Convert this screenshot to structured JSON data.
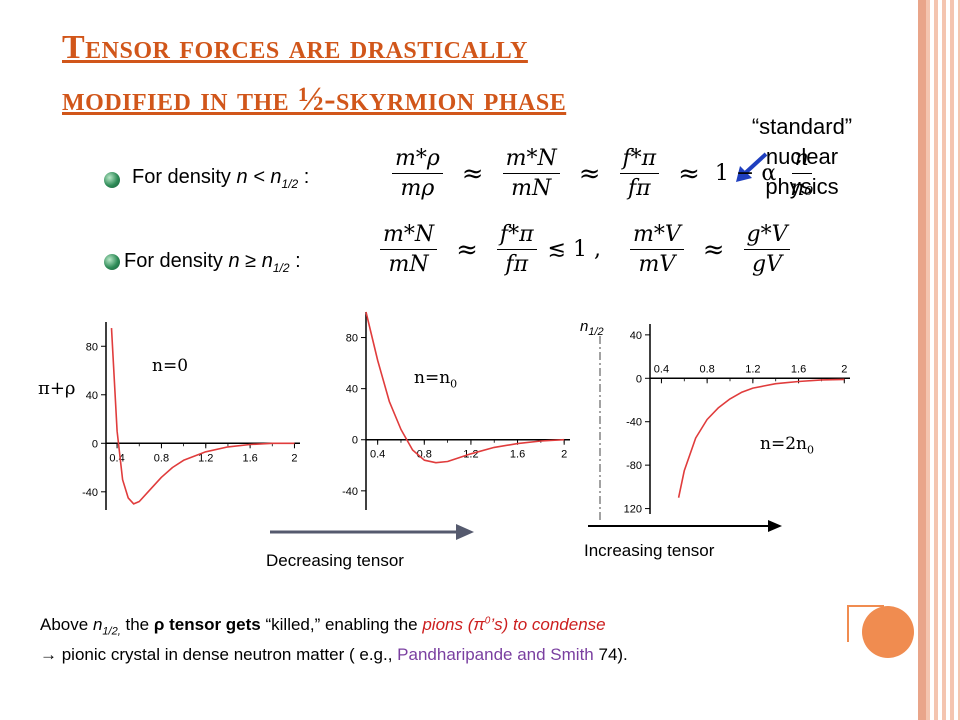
{
  "slide": {
    "title_line1": "Tensor forces are drastically",
    "title_line2": "modified in the ½-skyrmion phase"
  },
  "bullets": {
    "first_prefix": "For density",
    "first_cond": "n < n",
    "first_sub": "1/2",
    "first_colon": ":",
    "second_prefix": "For density",
    "second_cond": "n ≥ n",
    "second_sub": "1/2",
    "second_colon": ":"
  },
  "eq1": {
    "t1_num": "m*ρ",
    "t1_den": "mρ",
    "t2_num": "m*N",
    "t2_den": "mN",
    "t3_num": "f*π",
    "t3_den": "fπ",
    "tail": "1 − α",
    "t4_num": "n",
    "t4_den": "n₀",
    "approx": "≈"
  },
  "eq2": {
    "t1_num": "m*N",
    "t1_den": "mN",
    "t2_num": "f*π",
    "t2_den": "fπ",
    "lesssim": "≲ 1 ,",
    "t3_num": "m*V",
    "t3_den": "mV",
    "t4_num": "g*V",
    "t4_den": "gV",
    "approx": "≈"
  },
  "annotation": {
    "line1": "“standard”",
    "line2": "nuclear",
    "line3": "physics",
    "arrow_color": "#1f3fbf"
  },
  "plots": {
    "channel_label": "π+ρ",
    "n_half_label": "n",
    "n_half_sub": "1/2",
    "decreasing_label": "Decreasing tensor",
    "increasing_label": "Increasing tensor"
  },
  "chart_data": [
    {
      "type": "line",
      "annotation": "n=0",
      "x": [
        0.35,
        0.4,
        0.45,
        0.5,
        0.55,
        0.6,
        0.7,
        0.8,
        0.9,
        1.0,
        1.2,
        1.4,
        1.6,
        1.8,
        2.0
      ],
      "y": [
        95,
        10,
        -30,
        -45,
        -50,
        -48,
        -38,
        -28,
        -20,
        -14,
        -7,
        -3,
        -1,
        0,
        0
      ],
      "xticks": [
        "0.4",
        "0.8",
        "1.2",
        "1.6",
        "2"
      ],
      "yticks": [
        "80",
        "40",
        "0",
        "-40"
      ],
      "xlim": [
        0.3,
        2.05
      ],
      "ylim": [
        -55,
        100
      ],
      "color": "#e03c3c"
    },
    {
      "type": "line",
      "annotation": "n=n",
      "annotation_sub": "0",
      "x": [
        0.3,
        0.4,
        0.5,
        0.6,
        0.7,
        0.8,
        0.9,
        1.0,
        1.1,
        1.2,
        1.4,
        1.6,
        1.8,
        2.0
      ],
      "y": [
        100,
        62,
        30,
        8,
        -8,
        -16,
        -18,
        -17,
        -14,
        -11,
        -6,
        -3,
        -1,
        0
      ],
      "xticks": [
        "0.4",
        "0.8",
        "1.2",
        "1.6",
        "2"
      ],
      "yticks": [
        "80",
        "40",
        "0",
        "-40"
      ],
      "xlim": [
        0.3,
        2.05
      ],
      "ylim": [
        -55,
        100
      ],
      "color": "#e03c3c"
    },
    {
      "type": "line",
      "annotation": "n=2n",
      "annotation_sub": "0",
      "x": [
        0.55,
        0.6,
        0.7,
        0.8,
        0.9,
        1.0,
        1.1,
        1.2,
        1.3,
        1.4,
        1.6,
        1.8,
        2.0
      ],
      "y": [
        -110,
        -85,
        -55,
        -38,
        -27,
        -19,
        -13,
        -9,
        -7,
        -5,
        -3,
        -1.5,
        -1
      ],
      "xticks": [
        "0.4",
        "0.8",
        "1.2",
        "1.6",
        "2"
      ],
      "yticks": [
        "40",
        "0",
        "-40",
        "-80",
        "120"
      ],
      "xlim": [
        0.3,
        2.05
      ],
      "ylim": [
        -125,
        50
      ],
      "color": "#e03c3c"
    }
  ],
  "bottom": {
    "l1_a": "Above  ",
    "l1_n": "n",
    "l1_sub": "1/2,",
    "l1_b": " the ",
    "l1_rho": "ρ",
    "l1_c": " tensor gets",
    "l1_d": " “killed,” enabling the ",
    "l1_red1": "pions (",
    "l1_pi": "π",
    "l1_sup": "0",
    "l1_red2": "’s) to condense",
    "l2_a": "→  pionic crystal in dense neutron matter ( e.g., ",
    "l2_purple": "Pandharipande and Smith",
    "l2_b": " 74)."
  }
}
